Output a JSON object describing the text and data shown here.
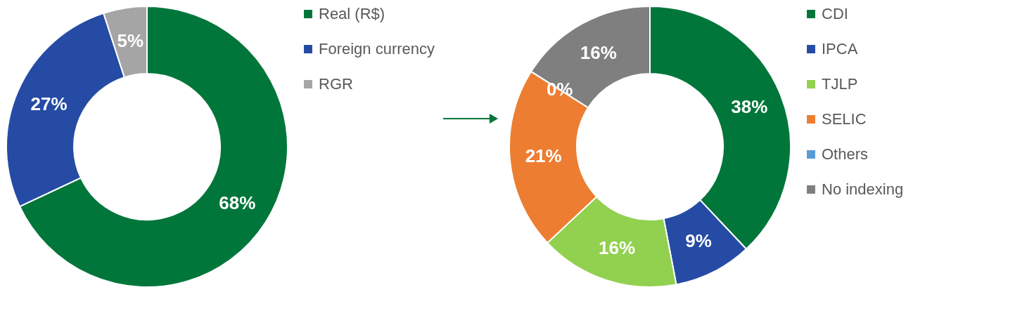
{
  "chart_data": [
    {
      "type": "donut",
      "categories": [
        "Real (R$)",
        "Foreign currency",
        "RGR"
      ],
      "values": [
        68,
        27,
        5
      ],
      "colors": [
        "#00763a",
        "#254ba4",
        "#a5a5a5"
      ],
      "value_labels": [
        "68%",
        "27%",
        "5%"
      ],
      "legend": "right"
    },
    {
      "type": "donut",
      "categories": [
        "CDI",
        "IPCA",
        "TJLP",
        "SELIC",
        "Others",
        "No indexing"
      ],
      "values": [
        38,
        9,
        16,
        21,
        0,
        16
      ],
      "colors": [
        "#00763a",
        "#254ba4",
        "#92d050",
        "#ed7d31",
        "#5b9bd5",
        "#7f7f7f"
      ],
      "value_labels": [
        "38%",
        "9%",
        "16%",
        "21%",
        "0%",
        "16%"
      ],
      "legend": "right"
    }
  ]
}
